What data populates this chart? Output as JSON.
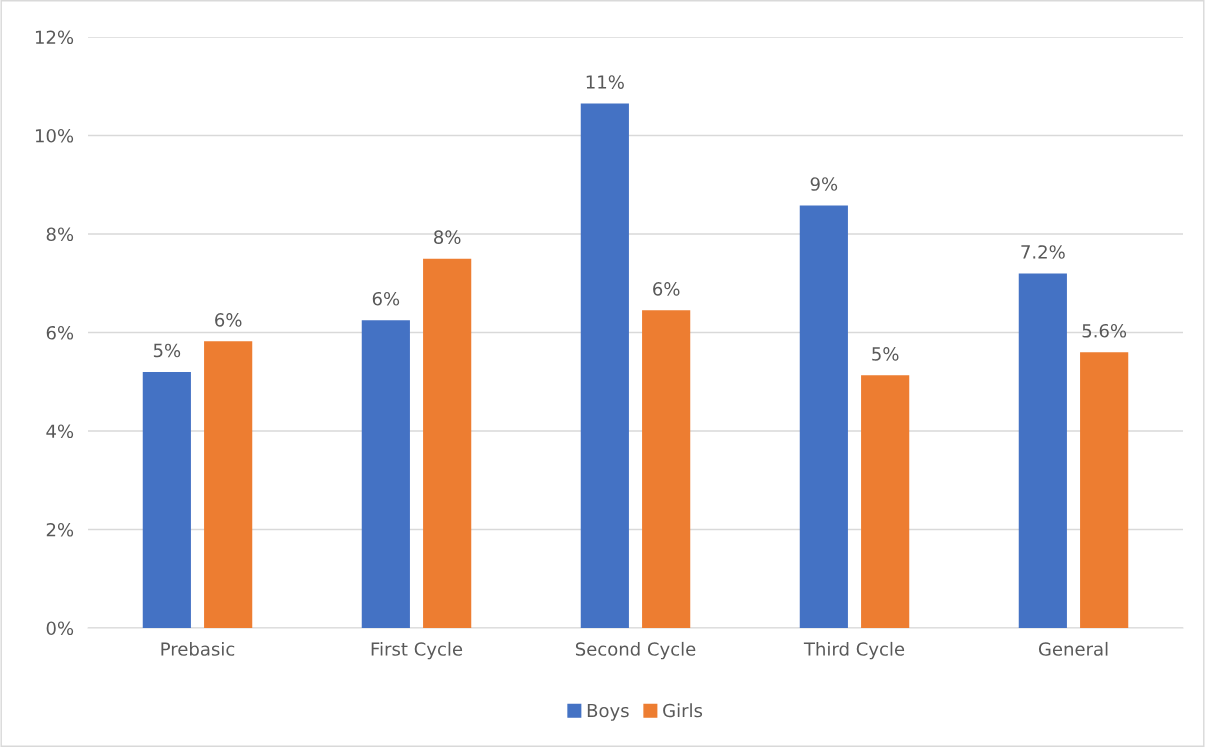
{
  "chart_data": {
    "type": "bar",
    "categories": [
      "Prebasic",
      "First Cycle",
      "Second Cycle",
      "Third Cycle",
      "General"
    ],
    "series": [
      {
        "name": "Boys",
        "color": "#4472c4",
        "values": [
          5.2,
          6.25,
          10.65,
          8.58,
          7.2
        ],
        "value_labels": [
          "5%",
          "6%",
          "11%",
          "9%",
          "7.2%"
        ]
      },
      {
        "name": "Girls",
        "color": "#ed7d31",
        "values": [
          5.82,
          7.5,
          6.45,
          5.13,
          5.6
        ],
        "value_labels": [
          "6%",
          "8%",
          "6%",
          "5%",
          "5.6%"
        ]
      }
    ],
    "ylim": [
      0,
      12
    ],
    "yticks": [
      {
        "value": 0,
        "label": "0%"
      },
      {
        "value": 2,
        "label": "2%"
      },
      {
        "value": 4,
        "label": "4%"
      },
      {
        "value": 6,
        "label": "6%"
      },
      {
        "value": 8,
        "label": "8%"
      },
      {
        "value": 10,
        "label": "10%"
      },
      {
        "value": 12,
        "label": "12%"
      }
    ],
    "grid": "y",
    "legend": "bottom"
  }
}
